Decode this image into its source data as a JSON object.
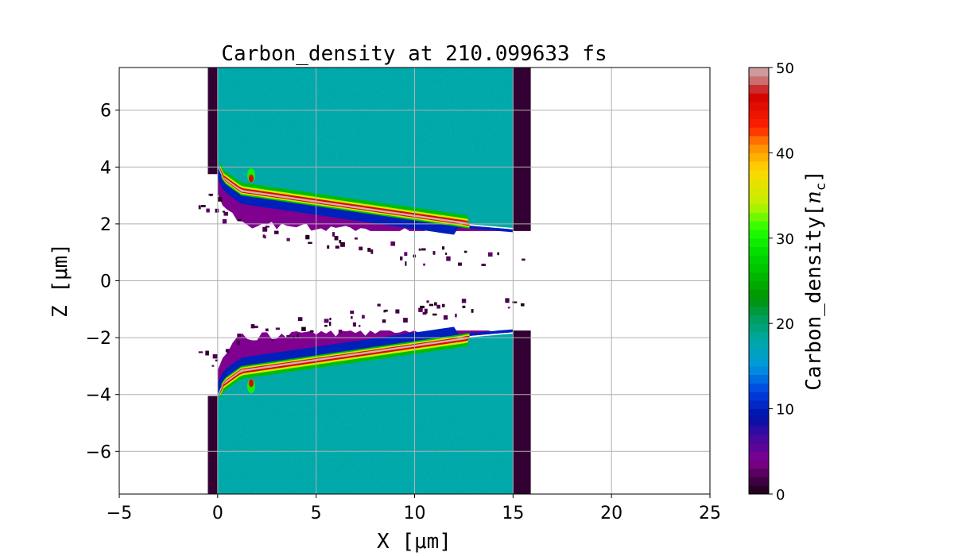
{
  "chart_data": {
    "type": "heatmap",
    "title": "Carbon_density at 210.099633 fs",
    "xlabel": "X [μm]",
    "ylabel": "Z [μm]",
    "xlim": [
      -5,
      25
    ],
    "ylim": [
      -7.5,
      7.5
    ],
    "xticks": [
      -5,
      0,
      5,
      10,
      15,
      20,
      25
    ],
    "xtick_labels": [
      "−5",
      "0",
      "5",
      "10",
      "15",
      "20",
      "25"
    ],
    "yticks": [
      -6,
      -4,
      -2,
      0,
      2,
      4,
      6
    ],
    "ytick_labels": [
      "−6",
      "−4",
      "−2",
      "0",
      "2",
      "4",
      "6"
    ],
    "grid": true,
    "colorbar": {
      "label": "Carbon_density[n_c]",
      "label_main": "Carbon_density[",
      "label_italic": "n",
      "label_sub": "c",
      "label_end": "]",
      "range": [
        0,
        50
      ],
      "ticks": [
        0,
        10,
        20,
        30,
        40,
        50
      ],
      "tick_labels": [
        "0",
        "10",
        "20",
        "30",
        "40",
        "50"
      ],
      "levels": 50,
      "stops": [
        {
          "v": 0,
          "c": "#1a0014"
        },
        {
          "v": 2,
          "c": "#4a0050"
        },
        {
          "v": 4,
          "c": "#800090"
        },
        {
          "v": 7,
          "c": "#3a0aa0"
        },
        {
          "v": 9,
          "c": "#0010a8"
        },
        {
          "v": 12,
          "c": "#0040e0"
        },
        {
          "v": 15,
          "c": "#0098dd"
        },
        {
          "v": 18,
          "c": "#00a8a8"
        },
        {
          "v": 21,
          "c": "#009c50"
        },
        {
          "v": 23,
          "c": "#009400"
        },
        {
          "v": 28,
          "c": "#00d800"
        },
        {
          "v": 31,
          "c": "#20ff00"
        },
        {
          "v": 34,
          "c": "#c0f000"
        },
        {
          "v": 38,
          "c": "#ffd800"
        },
        {
          "v": 41,
          "c": "#ff8800"
        },
        {
          "v": 43,
          "c": "#ff2000"
        },
        {
          "v": 47,
          "c": "#d00000"
        },
        {
          "v": 48,
          "c": "#c85858"
        },
        {
          "v": 50,
          "c": "#d0b0b0"
        }
      ]
    },
    "features": {
      "targets_x_range": [
        0,
        15
      ],
      "channel_z_half_width_at_x0": 4.0,
      "channel_z_half_width_at_x15": 1.8,
      "bulk_density": 17,
      "peak_density": 50
    }
  }
}
